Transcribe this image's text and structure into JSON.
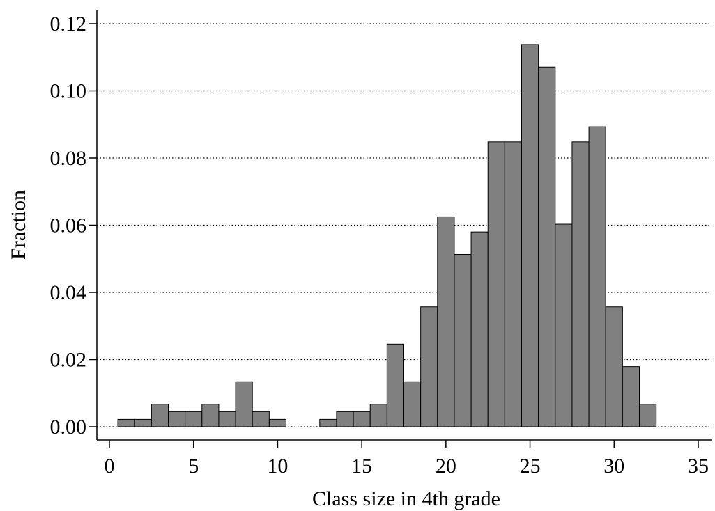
{
  "chart_data": {
    "type": "bar",
    "xlabel": "Class size in 4th grade",
    "ylabel": "Fraction",
    "xlim": [
      0,
      35
    ],
    "ylim": [
      0,
      0.12
    ],
    "x_ticks": [
      0,
      5,
      10,
      15,
      20,
      25,
      30,
      35
    ],
    "y_ticks": [
      "0.00",
      "0.02",
      "0.04",
      "0.06",
      "0.08",
      "0.10",
      "0.12"
    ],
    "grid": "horizontal dotted",
    "bar_color": "#808080",
    "x": [
      1,
      2,
      3,
      4,
      5,
      6,
      7,
      8,
      9,
      10,
      13,
      14,
      15,
      16,
      17,
      18,
      19,
      20,
      21,
      22,
      23,
      24,
      25,
      26,
      27,
      28,
      29,
      30,
      31,
      32
    ],
    "values": [
      0.0022,
      0.0022,
      0.0067,
      0.0045,
      0.0045,
      0.0067,
      0.0045,
      0.0134,
      0.0045,
      0.0022,
      0.0022,
      0.0045,
      0.0045,
      0.0067,
      0.0246,
      0.0134,
      0.0357,
      0.0625,
      0.0513,
      0.058,
      0.0848,
      0.0848,
      0.1138,
      0.1071,
      0.0603,
      0.0848,
      0.0893,
      0.0357,
      0.0179,
      0.0067
    ]
  }
}
